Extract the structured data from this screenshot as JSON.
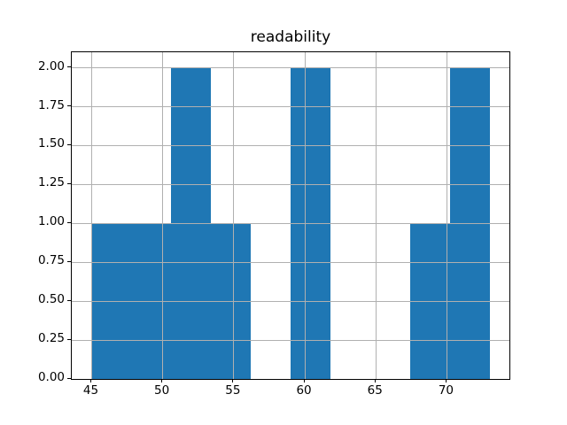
{
  "chart_data": {
    "type": "bar",
    "subtype": "histogram",
    "title": "readability",
    "xlabel": "",
    "ylabel": "",
    "bin_edges": [
      45.0,
      47.8,
      50.6,
      53.4,
      56.2,
      59.0,
      61.8,
      64.6,
      67.4,
      70.2,
      73.0
    ],
    "counts": [
      1,
      1,
      2,
      1,
      0,
      2,
      0,
      0,
      1,
      2
    ],
    "xlim": [
      43.6,
      74.4
    ],
    "ylim": [
      0,
      2.1
    ],
    "x_ticks": [
      {
        "value": 45,
        "label": "45"
      },
      {
        "value": 50,
        "label": "50"
      },
      {
        "value": 55,
        "label": "55"
      },
      {
        "value": 60,
        "label": "60"
      },
      {
        "value": 65,
        "label": "65"
      },
      {
        "value": 70,
        "label": "70"
      }
    ],
    "y_ticks": [
      {
        "value": 0.0,
        "label": "0.00"
      },
      {
        "value": 0.25,
        "label": "0.25"
      },
      {
        "value": 0.5,
        "label": "0.50"
      },
      {
        "value": 0.75,
        "label": "0.75"
      },
      {
        "value": 1.0,
        "label": "1.00"
      },
      {
        "value": 1.25,
        "label": "1.25"
      },
      {
        "value": 1.5,
        "label": "1.50"
      },
      {
        "value": 1.75,
        "label": "1.75"
      },
      {
        "value": 2.0,
        "label": "2.00"
      }
    ],
    "grid": true,
    "grid_above_bars": true,
    "legend": false,
    "colors": {
      "bar": "#1f77b4",
      "grid": "#b0b0b0",
      "axes": "#000000",
      "background": "#ffffff"
    }
  }
}
